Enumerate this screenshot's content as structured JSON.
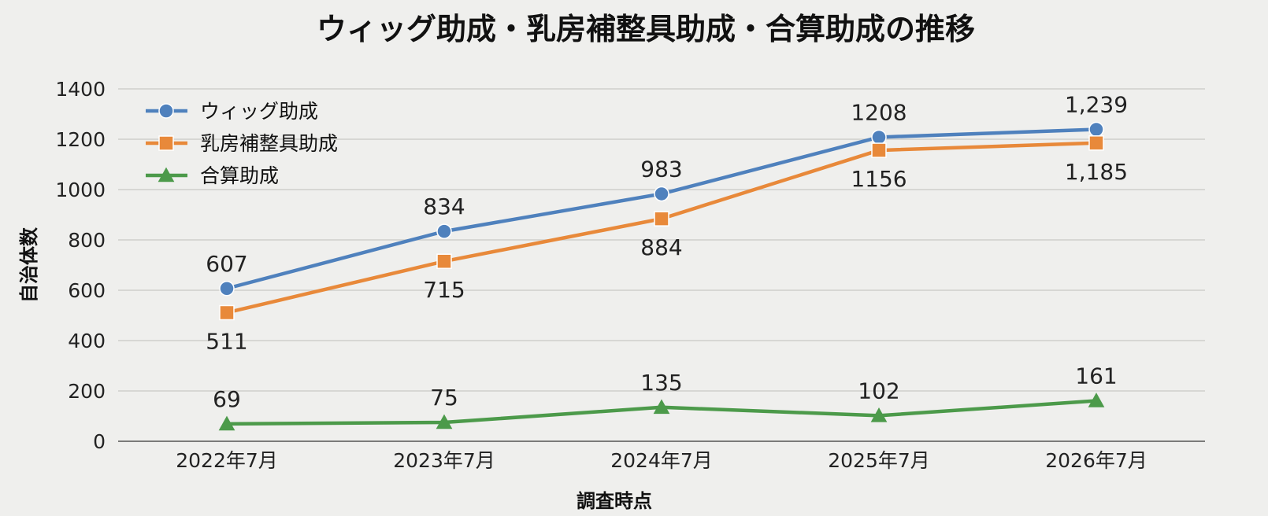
{
  "chart_data": {
    "type": "line",
    "title": "ウィッグ助成・乳房補整具助成・合算助成の推移",
    "xlabel": "調査時点",
    "ylabel": "自治体数",
    "categories": [
      "2022年7月",
      "2023年7月",
      "2024年7月",
      "2025年7月",
      "2026年7月"
    ],
    "ylim": [
      0,
      1400
    ],
    "yticks": [
      0,
      200,
      400,
      600,
      800,
      1000,
      1200,
      1400
    ],
    "grid": true,
    "legend_position": "top-left",
    "series": [
      {
        "name": "ウィッグ助成",
        "values": [
          607,
          834,
          983,
          1208,
          1239
        ],
        "labels": [
          "607",
          "834",
          "983",
          "1208",
          "1,239"
        ],
        "label_position": "above",
        "color": "#4f81bd",
        "marker": "circle"
      },
      {
        "name": "乳房補整具助成",
        "values": [
          511,
          715,
          884,
          1156,
          1185
        ],
        "labels": [
          "511",
          "715",
          "884",
          "1156",
          "1,185"
        ],
        "label_position": "below",
        "color": "#e8893a",
        "marker": "square"
      },
      {
        "name": "合算助成",
        "values": [
          69,
          75,
          135,
          102,
          161
        ],
        "labels": [
          "69",
          "75",
          "135",
          "102",
          "161"
        ],
        "label_position": "above",
        "color": "#4c9a4a",
        "marker": "triangle"
      }
    ]
  }
}
